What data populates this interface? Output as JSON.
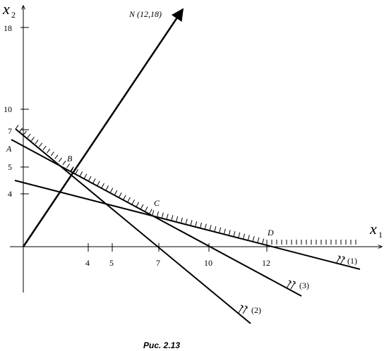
{
  "axes": {
    "x": {
      "label": "x",
      "subscript": "1",
      "ticks": [
        "4",
        "5",
        "7",
        "10",
        "12"
      ]
    },
    "y": {
      "label": "x",
      "subscript": "2",
      "ticks": [
        "18",
        "10",
        "7",
        "5",
        "4"
      ]
    }
  },
  "points": {
    "A": "A",
    "B": "B",
    "C": "C",
    "D": "D"
  },
  "vector": {
    "label": "N (12,18)",
    "x": 12,
    "y": 18
  },
  "lines": [
    {
      "label": "(1)"
    },
    {
      "label": "(2)"
    },
    {
      "label": "(3)"
    }
  ],
  "caption": "Рис. 2.13"
}
